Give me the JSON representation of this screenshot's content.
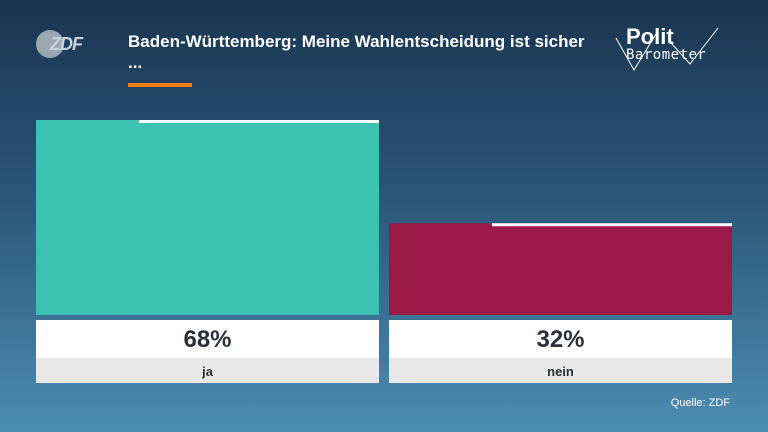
{
  "header": {
    "logo_text": "ZDF",
    "title": "Baden-Württemberg: Meine Wahlentscheidung ist sicher ...",
    "brand_line1": "Polit",
    "brand_line2": "Barometer",
    "accent_color": "#f07e1a"
  },
  "footer": {
    "source": "Quelle: ZDF"
  },
  "chart_data": {
    "type": "bar",
    "title": "Baden-Württemberg: Meine Wahlentscheidung ist sicher ...",
    "categories": [
      "ja",
      "nein"
    ],
    "values": [
      68,
      32
    ],
    "value_labels": [
      "68%",
      "32%"
    ],
    "colors": [
      "#3cc2b0",
      "#9c1a48"
    ],
    "ylim": [
      0,
      68
    ],
    "grid": false,
    "legend": "none"
  }
}
